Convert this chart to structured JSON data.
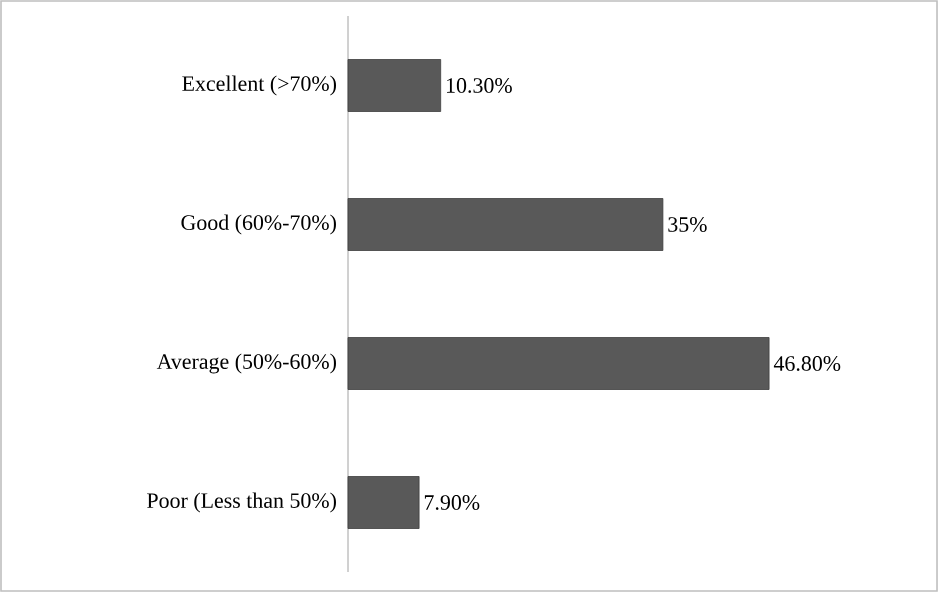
{
  "chart_data": {
    "type": "bar",
    "orientation": "horizontal",
    "categories": [
      "Excellent (>70%)",
      "Good (60%-70%)",
      "Average (50%-60%)",
      "Poor (Less than 50%)"
    ],
    "values": [
      10.3,
      35,
      46.8,
      7.9
    ],
    "value_labels": [
      "10.30%",
      "35%",
      "46.80%",
      "7.90%"
    ],
    "color": "#595959"
  }
}
